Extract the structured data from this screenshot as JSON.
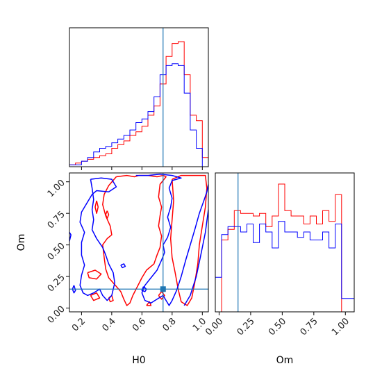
{
  "chart_data": {
    "type": "corner-plot",
    "parameters": [
      "H0",
      "Om"
    ],
    "truths": {
      "H0": 0.74,
      "Om": 0.15
    },
    "colors": {
      "red": "#ff0000",
      "blue": "#0000ff",
      "truth": "#1f77b4"
    },
    "axes": {
      "H0": {
        "xlabel": "H0",
        "range": [
          0.12,
          1.04
        ],
        "ticks": [
          0.2,
          0.4,
          0.6,
          0.8,
          1.0
        ],
        "tick_labels": [
          "0.2",
          "0.4",
          "0.6",
          "0.8",
          "1.0"
        ]
      },
      "Om": {
        "xlabel": "Om",
        "ylabel": "Om",
        "range": [
          -0.03,
          1.07
        ],
        "ticks": [
          0.0,
          0.25,
          0.5,
          0.75,
          1.0
        ],
        "tick_labels": [
          "0.00",
          "0.25",
          "0.50",
          "0.75",
          "1.00"
        ]
      }
    },
    "hist_H0": {
      "bin_edges": [
        0.12,
        0.16,
        0.2,
        0.24,
        0.28,
        0.32,
        0.36,
        0.4,
        0.44,
        0.48,
        0.52,
        0.56,
        0.6,
        0.64,
        0.68,
        0.72,
        0.76,
        0.8,
        0.84,
        0.88,
        0.92,
        0.96,
        1.0,
        1.04
      ],
      "series": [
        {
          "color": "red",
          "counts": [
            1,
            2,
            3,
            4,
            5,
            6,
            7,
            10,
            12,
            14,
            17,
            19,
            22,
            28,
            33,
            45,
            60,
            67,
            68,
            50,
            28,
            25,
            5
          ]
        },
        {
          "color": "blue",
          "counts": [
            1,
            1,
            3,
            5,
            8,
            10,
            11,
            13,
            15,
            17,
            20,
            24,
            26,
            30,
            38,
            50,
            55,
            56,
            55,
            40,
            20,
            10,
            0
          ]
        }
      ]
    },
    "hist_Om": {
      "bin_edges": [
        -0.03,
        0.02,
        0.07,
        0.12,
        0.17,
        0.22,
        0.27,
        0.32,
        0.37,
        0.42,
        0.47,
        0.52,
        0.57,
        0.62,
        0.67,
        0.72,
        0.77,
        0.82,
        0.87,
        0.92,
        0.97,
        1.02,
        1.07
      ],
      "series": [
        {
          "color": "red",
          "counts": [
            0,
            27,
            31,
            38,
            37,
            37,
            36,
            37,
            32,
            36,
            48,
            38,
            36,
            36,
            33,
            36,
            33,
            38,
            34,
            44,
            0,
            0
          ]
        },
        {
          "color": "blue",
          "counts": [
            13,
            29,
            32,
            32,
            30,
            33,
            26,
            33,
            30,
            24,
            34,
            30,
            30,
            28,
            30,
            27,
            27,
            30,
            24,
            33,
            5,
            5
          ]
        }
      ]
    },
    "contours_2d": [
      {
        "color": "red",
        "paths": [
          [
            [
              0.43,
              1.04
            ],
            [
              0.5,
              1.05
            ],
            [
              0.55,
              1.04
            ],
            [
              0.58,
              1.05
            ],
            [
              0.64,
              1.05
            ],
            [
              0.7,
              1.04
            ],
            [
              0.74,
              1.05
            ],
            [
              0.76,
              1.04
            ],
            [
              0.72,
              0.98
            ],
            [
              0.71,
              0.88
            ],
            [
              0.73,
              0.8
            ],
            [
              0.72,
              0.73
            ],
            [
              0.71,
              0.65
            ],
            [
              0.73,
              0.57
            ],
            [
              0.72,
              0.48
            ],
            [
              0.7,
              0.42
            ],
            [
              0.68,
              0.35
            ],
            [
              0.63,
              0.3
            ],
            [
              0.6,
              0.24
            ],
            [
              0.57,
              0.17
            ],
            [
              0.54,
              0.1
            ],
            [
              0.52,
              0.04
            ],
            [
              0.5,
              0.02
            ],
            [
              0.48,
              0.07
            ],
            [
              0.46,
              0.13
            ],
            [
              0.41,
              0.2
            ],
            [
              0.38,
              0.24
            ],
            [
              0.36,
              0.31
            ],
            [
              0.35,
              0.4
            ],
            [
              0.34,
              0.5
            ],
            [
              0.37,
              0.55
            ],
            [
              0.4,
              0.58
            ],
            [
              0.39,
              0.65
            ],
            [
              0.36,
              0.73
            ],
            [
              0.34,
              0.82
            ],
            [
              0.35,
              0.9
            ],
            [
              0.38,
              0.97
            ],
            [
              0.43,
              1.04
            ]
          ],
          [
            [
              0.8,
              1.02
            ],
            [
              0.86,
              1.05
            ],
            [
              0.93,
              1.05
            ],
            [
              1.02,
              1.05
            ],
            [
              1.03,
              0.95
            ],
            [
              1.02,
              0.8
            ],
            [
              1.0,
              0.65
            ],
            [
              0.98,
              0.5
            ],
            [
              0.97,
              0.35
            ],
            [
              0.95,
              0.2
            ],
            [
              0.93,
              0.08
            ],
            [
              0.9,
              0.02
            ],
            [
              0.86,
              0.05
            ],
            [
              0.84,
              0.15
            ],
            [
              0.82,
              0.28
            ],
            [
              0.8,
              0.4
            ],
            [
              0.79,
              0.55
            ],
            [
              0.8,
              0.7
            ],
            [
              0.81,
              0.85
            ],
            [
              0.8,
              1.02
            ]
          ],
          [
            [
              0.3,
              0.85
            ],
            [
              0.31,
              0.8
            ],
            [
              0.3,
              0.75
            ],
            [
              0.29,
              0.8
            ],
            [
              0.3,
              0.85
            ]
          ],
          [
            [
              0.37,
              0.77
            ],
            [
              0.38,
              0.74
            ],
            [
              0.37,
              0.71
            ],
            [
              0.36,
              0.74
            ],
            [
              0.37,
              0.77
            ]
          ],
          [
            [
              0.24,
              0.28
            ],
            [
              0.29,
              0.3
            ],
            [
              0.33,
              0.27
            ],
            [
              0.3,
              0.23
            ],
            [
              0.25,
              0.24
            ],
            [
              0.24,
              0.28
            ]
          ],
          [
            [
              0.26,
              0.1
            ],
            [
              0.3,
              0.12
            ],
            [
              0.32,
              0.08
            ],
            [
              0.28,
              0.06
            ],
            [
              0.26,
              0.1
            ]
          ],
          [
            [
              0.38,
              0.08
            ],
            [
              0.4,
              0.1
            ],
            [
              0.41,
              0.06
            ],
            [
              0.39,
              0.05
            ],
            [
              0.38,
              0.08
            ]
          ],
          [
            [
              0.71,
              0.1
            ],
            [
              0.73,
              0.13
            ],
            [
              0.75,
              0.1
            ],
            [
              0.73,
              0.07
            ],
            [
              0.71,
              0.1
            ]
          ],
          [
            [
              0.63,
              0.02
            ],
            [
              0.65,
              0.05
            ],
            [
              0.66,
              0.02
            ],
            [
              0.63,
              0.02
            ]
          ]
        ]
      },
      {
        "color": "blue",
        "paths": [
          [
            [
              0.26,
              1.02
            ],
            [
              0.33,
              1.03
            ],
            [
              0.4,
              1.02
            ],
            [
              0.43,
              0.96
            ],
            [
              0.38,
              0.92
            ],
            [
              0.3,
              0.93
            ],
            [
              0.27,
              0.9
            ],
            [
              0.24,
              0.84
            ],
            [
              0.2,
              0.76
            ],
            [
              0.19,
              0.68
            ],
            [
              0.22,
              0.6
            ],
            [
              0.2,
              0.52
            ],
            [
              0.2,
              0.42
            ],
            [
              0.22,
              0.34
            ],
            [
              0.2,
              0.26
            ],
            [
              0.19,
              0.18
            ],
            [
              0.21,
              0.12
            ],
            [
              0.24,
              0.1
            ],
            [
              0.28,
              0.12
            ],
            [
              0.32,
              0.15
            ],
            [
              0.34,
              0.1
            ],
            [
              0.37,
              0.06
            ],
            [
              0.4,
              0.1
            ],
            [
              0.42,
              0.2
            ],
            [
              0.41,
              0.28
            ],
            [
              0.38,
              0.35
            ],
            [
              0.36,
              0.42
            ],
            [
              0.34,
              0.48
            ],
            [
              0.3,
              0.55
            ],
            [
              0.27,
              0.62
            ],
            [
              0.28,
              0.7
            ],
            [
              0.27,
              0.78
            ],
            [
              0.28,
              0.86
            ],
            [
              0.27,
              0.95
            ],
            [
              0.26,
              1.02
            ]
          ],
          [
            [
              0.56,
              1.05
            ],
            [
              0.64,
              1.05
            ],
            [
              0.72,
              1.06
            ],
            [
              0.8,
              1.05
            ],
            [
              0.86,
              1.03
            ],
            [
              0.8,
              1.01
            ],
            [
              0.78,
              0.95
            ],
            [
              0.8,
              0.87
            ],
            [
              0.79,
              0.8
            ],
            [
              0.77,
              0.72
            ],
            [
              0.79,
              0.64
            ],
            [
              0.77,
              0.56
            ],
            [
              0.74,
              0.5
            ],
            [
              0.75,
              0.44
            ],
            [
              0.73,
              0.38
            ],
            [
              0.7,
              0.3
            ],
            [
              0.66,
              0.24
            ],
            [
              0.62,
              0.18
            ],
            [
              0.6,
              0.12
            ],
            [
              0.62,
              0.06
            ],
            [
              0.66,
              0.04
            ],
            [
              0.7,
              0.07
            ],
            [
              0.74,
              0.1
            ],
            [
              0.76,
              0.06
            ],
            [
              0.78,
              0.02
            ],
            [
              0.8,
              0.06
            ],
            [
              0.83,
              0.14
            ],
            [
              0.86,
              0.25
            ],
            [
              0.89,
              0.38
            ],
            [
              0.92,
              0.5
            ],
            [
              0.95,
              0.62
            ],
            [
              0.98,
              0.75
            ],
            [
              1.01,
              0.85
            ],
            [
              1.03,
              0.92
            ],
            [
              1.04,
              0.98
            ]
          ],
          [
            [
              0.88,
              0.02
            ],
            [
              0.92,
              0.1
            ],
            [
              0.96,
              0.25
            ],
            [
              0.99,
              0.42
            ],
            [
              1.02,
              0.6
            ],
            [
              1.04,
              0.78
            ]
          ],
          [
            [
              0.11,
              0.62
            ],
            [
              0.13,
              0.58
            ],
            [
              0.12,
              0.53
            ],
            [
              0.1,
              0.57
            ],
            [
              0.11,
              0.62
            ]
          ],
          [
            [
              0.46,
              0.34
            ],
            [
              0.48,
              0.35
            ],
            [
              0.49,
              0.33
            ],
            [
              0.47,
              0.32
            ],
            [
              0.46,
              0.34
            ]
          ],
          [
            [
              0.61,
              0.17
            ],
            [
              0.63,
              0.15
            ],
            [
              0.62,
              0.13
            ],
            [
              0.6,
              0.14
            ],
            [
              0.61,
              0.17
            ]
          ],
          [
            [
              0.15,
              0.18
            ],
            [
              0.16,
              0.14
            ],
            [
              0.15,
              0.12
            ],
            [
              0.14,
              0.15
            ],
            [
              0.15,
              0.18
            ]
          ]
        ]
      }
    ]
  }
}
